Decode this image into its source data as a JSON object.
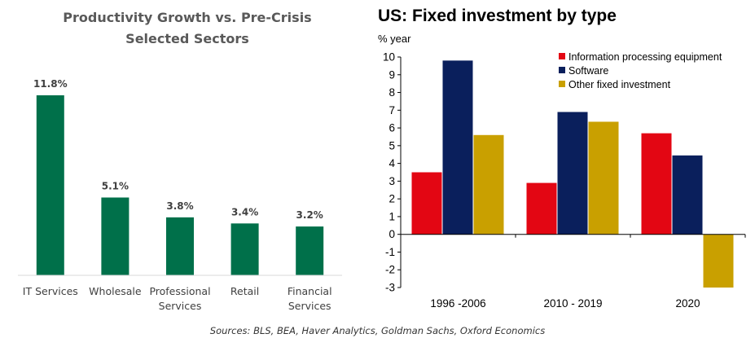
{
  "chart_data": [
    {
      "type": "bar",
      "title": "Productivity Growth vs. Pre-Crisis",
      "subtitle": "Selected Sectors",
      "categories": [
        "IT Services",
        "Wholesale",
        "Professional Services",
        "Retail",
        "Financial Services"
      ],
      "category_lines": [
        [
          "IT Services"
        ],
        [
          "Wholesale"
        ],
        [
          "Professional",
          "Services"
        ],
        [
          "Retail"
        ],
        [
          "Financial",
          "Services"
        ]
      ],
      "values": [
        11.8,
        5.1,
        3.8,
        3.4,
        3.2
      ],
      "data_labels": [
        "11.8%",
        "5.1%",
        "3.8%",
        "3.4%",
        "3.2%"
      ],
      "bar_color": "#00704A",
      "grid": false
    },
    {
      "type": "bar",
      "title": "US: Fixed investment by type",
      "ylabel": "% year",
      "categories": [
        "1996 -2006",
        "2010 - 2019",
        "2020"
      ],
      "ylim": [
        -3,
        10
      ],
      "yticks": [
        10,
        9,
        8,
        7,
        6,
        5,
        4,
        3,
        2,
        1,
        0,
        -1,
        -2,
        -3
      ],
      "series": [
        {
          "name": "Information processing equipment",
          "color": "#E30613",
          "values": [
            3.5,
            2.9,
            5.7
          ]
        },
        {
          "name": "Software",
          "color": "#0A1F5C",
          "values": [
            9.8,
            6.9,
            4.45
          ]
        },
        {
          "name": "Other fixed investment",
          "color": "#C9A000",
          "values": [
            5.6,
            6.35,
            -3.0
          ]
        }
      ],
      "legend_position": "top-right",
      "grid": false
    }
  ],
  "source_note": "Sources: BLS, BEA, Haver Analytics, Goldman Sachs, Oxford Economics"
}
